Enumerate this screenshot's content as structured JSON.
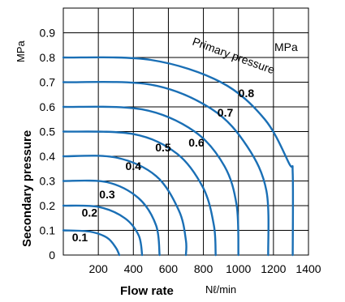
{
  "chart_data": {
    "type": "line",
    "xlabel": "Flow rate",
    "xunit": "Nℓ/min",
    "ylabel": "Secondary pressure",
    "yunit": "MPa",
    "xlim": [
      0,
      1400
    ],
    "ylim": [
      0,
      1.0
    ],
    "x_ticks": [
      200,
      400,
      600,
      800,
      1000,
      1200,
      1400
    ],
    "y_ticks": [
      0,
      0.1,
      0.2,
      0.3,
      0.4,
      0.5,
      0.6,
      0.7,
      0.8,
      0.9
    ],
    "x_tick_labels": [
      "200",
      "400",
      "600",
      "800",
      "1000",
      "1200",
      "1400"
    ],
    "y_tick_labels": [
      "0",
      "0.1",
      "0.2",
      "0.3",
      "0.4",
      "0.5",
      "0.6",
      "0.7",
      "0.8",
      "0.9"
    ],
    "grid": true,
    "color": "#1a6fb5",
    "annotations": [
      {
        "text": "Primary pressure"
      },
      {
        "text": "MPa"
      }
    ],
    "series": [
      {
        "name": "0.1",
        "points": [
          [
            0,
            0.1
          ],
          [
            150,
            0.095
          ],
          [
            250,
            0.07
          ],
          [
            300,
            0.03
          ],
          [
            320,
            0.0
          ]
        ]
      },
      {
        "name": "0.2",
        "points": [
          [
            0,
            0.2
          ],
          [
            200,
            0.195
          ],
          [
            350,
            0.15
          ],
          [
            430,
            0.08
          ],
          [
            450,
            0.0
          ]
        ]
      },
      {
        "name": "0.3",
        "points": [
          [
            0,
            0.3
          ],
          [
            250,
            0.295
          ],
          [
            430,
            0.23
          ],
          [
            530,
            0.12
          ],
          [
            550,
            0.0
          ]
        ]
      },
      {
        "name": "0.4",
        "points": [
          [
            0,
            0.4
          ],
          [
            300,
            0.395
          ],
          [
            530,
            0.32
          ],
          [
            660,
            0.18
          ],
          [
            700,
            0.06
          ],
          [
            700,
            0.0
          ]
        ]
      },
      {
        "name": "0.5",
        "points": [
          [
            0,
            0.5
          ],
          [
            400,
            0.49
          ],
          [
            650,
            0.41
          ],
          [
            800,
            0.27
          ],
          [
            860,
            0.12
          ],
          [
            870,
            0.0
          ]
        ]
      },
      {
        "name": "0.6",
        "points": [
          [
            0,
            0.6
          ],
          [
            450,
            0.59
          ],
          [
            750,
            0.5
          ],
          [
            920,
            0.36
          ],
          [
            990,
            0.2
          ],
          [
            1000,
            0.0
          ]
        ]
      },
      {
        "name": "0.7",
        "points": [
          [
            0,
            0.7
          ],
          [
            500,
            0.69
          ],
          [
            850,
            0.59
          ],
          [
            1050,
            0.44
          ],
          [
            1160,
            0.26
          ],
          [
            1170,
            0.0
          ]
        ]
      },
      {
        "name": "0.8",
        "points": [
          [
            0,
            0.8
          ],
          [
            500,
            0.79
          ],
          [
            900,
            0.7
          ],
          [
            1150,
            0.55
          ],
          [
            1290,
            0.37
          ],
          [
            1310,
            0.33
          ],
          [
            1310,
            0.0
          ]
        ]
      }
    ],
    "curve_label_anchors": [
      {
        "name": "0.1",
        "x": 95,
        "y": 0.055
      },
      {
        "name": "0.2",
        "x": 150,
        "y": 0.155
      },
      {
        "name": "0.3",
        "x": 250,
        "y": 0.23
      },
      {
        "name": "0.4",
        "x": 400,
        "y": 0.345
      },
      {
        "name": "0.5",
        "x": 570,
        "y": 0.42
      },
      {
        "name": "0.6",
        "x": 760,
        "y": 0.44
      },
      {
        "name": "0.7",
        "x": 925,
        "y": 0.56
      },
      {
        "name": "0.8",
        "x": 1045,
        "y": 0.64
      }
    ]
  }
}
